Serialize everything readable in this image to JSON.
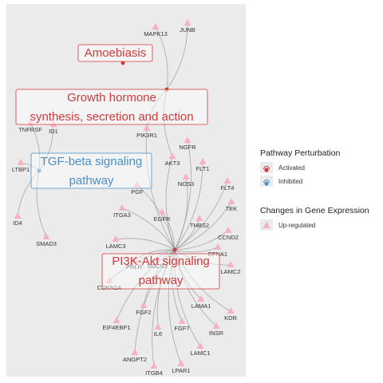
{
  "colors": {
    "panel": "#ebebeb",
    "edge": "#9a9a9a",
    "activated": "#d03a3a",
    "inhibited": "#4a8fc8",
    "upregulated": "#f6b1c2"
  },
  "pathways": [
    {
      "id": "amoebiasis",
      "lines": [
        "Amoebiasis"
      ],
      "status": "activated"
    },
    {
      "id": "growth-hormone",
      "lines": [
        "Growth hormone",
        "synthesis, secretion and action"
      ],
      "status": "activated"
    },
    {
      "id": "tgf-beta",
      "lines": [
        "TGF-beta signaling",
        "pathway"
      ],
      "status": "inhibited"
    },
    {
      "id": "pi3k-akt",
      "lines": [
        "PI3K-Akt signaling",
        "pathway"
      ],
      "status": "activated"
    }
  ],
  "genes": [
    {
      "name": "JUNB",
      "links": [
        "growth-hormone"
      ]
    },
    {
      "name": "MAPK13",
      "links": [
        "growth-hormone"
      ]
    },
    {
      "name": "PIK3R1",
      "links": [
        "growth-hormone",
        "pi3k-akt"
      ]
    },
    {
      "name": "NGFR",
      "links": [
        "pi3k-akt"
      ]
    },
    {
      "name": "AKT3",
      "links": [
        "growth-hormone",
        "pi3k-akt"
      ]
    },
    {
      "name": "FLT1",
      "links": [
        "pi3k-akt"
      ]
    },
    {
      "name": "FLT4",
      "links": [
        "pi3k-akt"
      ]
    },
    {
      "name": "NOS3",
      "links": [
        "pi3k-akt"
      ]
    },
    {
      "name": "PGF",
      "links": [
        "pi3k-akt"
      ]
    },
    {
      "name": "TEK",
      "links": [
        "pi3k-akt"
      ]
    },
    {
      "name": "ITGA3",
      "links": [
        "pi3k-akt"
      ]
    },
    {
      "name": "EGFR",
      "links": [
        "pi3k-akt"
      ]
    },
    {
      "name": "THBS2",
      "links": [
        "pi3k-akt"
      ]
    },
    {
      "name": "CCND2",
      "links": [
        "pi3k-akt"
      ]
    },
    {
      "name": "LAMC3",
      "links": [
        "pi3k-akt"
      ]
    },
    {
      "name": "EFNA1",
      "links": [
        "pi3k-akt"
      ]
    },
    {
      "name": "PRLR",
      "links": [
        "pi3k-akt"
      ]
    },
    {
      "name": "SOCS3",
      "links": [
        "pi3k-akt"
      ]
    },
    {
      "name": "LAMC2",
      "links": [
        "pi3k-akt"
      ]
    },
    {
      "name": "CDKN1A",
      "links": [
        "pi3k-akt"
      ]
    },
    {
      "name": "LAMA1",
      "links": [
        "pi3k-akt"
      ]
    },
    {
      "name": "KDR",
      "links": [
        "pi3k-akt"
      ]
    },
    {
      "name": "FGF2",
      "links": [
        "pi3k-akt"
      ]
    },
    {
      "name": "EIF4EBP1",
      "links": [
        "pi3k-akt"
      ]
    },
    {
      "name": "IL6",
      "links": [
        "pi3k-akt"
      ]
    },
    {
      "name": "FGF7",
      "links": [
        "pi3k-akt"
      ]
    },
    {
      "name": "INSR",
      "links": [
        "pi3k-akt"
      ]
    },
    {
      "name": "LAMC1",
      "links": [
        "pi3k-akt"
      ]
    },
    {
      "name": "ANGPT2",
      "links": [
        "pi3k-akt"
      ]
    },
    {
      "name": "ITGB4",
      "links": [
        "pi3k-akt"
      ]
    },
    {
      "name": "LPAR1",
      "links": [
        "pi3k-akt"
      ]
    },
    {
      "name": "TNFRSF",
      "links": [
        "tgf-beta"
      ]
    },
    {
      "name": "ID1",
      "links": [
        "tgf-beta"
      ]
    },
    {
      "name": "LTBP1",
      "links": [
        "tgf-beta"
      ]
    },
    {
      "name": "ID4",
      "links": [
        "tgf-beta"
      ]
    },
    {
      "name": "SMAD3",
      "links": [
        "tgf-beta"
      ]
    }
  ],
  "legend": {
    "perturbation_title": "Pathway Perturbation",
    "activated_label": "Activated",
    "inhibited_label": "Inhibited",
    "expression_title": "Changes in Gene Expression",
    "upregulated_label": "Up-regulated"
  }
}
